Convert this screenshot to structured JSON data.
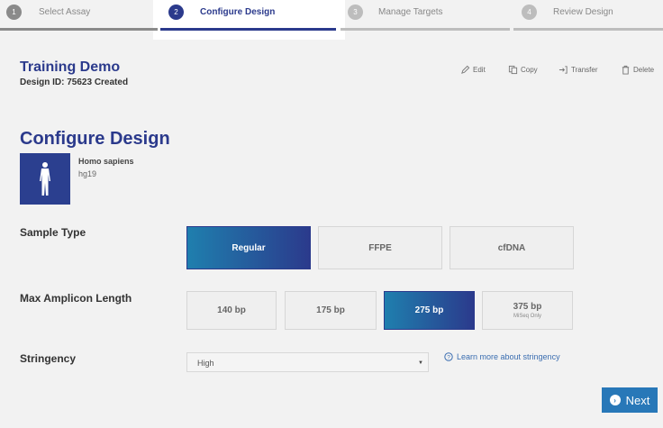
{
  "stepper": {
    "steps": [
      {
        "number": "1",
        "label": "Select Assay",
        "state": "done"
      },
      {
        "number": "2",
        "label": "Configure Design",
        "state": "active"
      },
      {
        "number": "3",
        "label": "Manage Targets",
        "state": "upcoming"
      },
      {
        "number": "4",
        "label": "Review Design",
        "state": "upcoming"
      }
    ]
  },
  "header": {
    "title": "Training Demo",
    "subtitle": "Design ID: 75623 Created",
    "actions": [
      {
        "label": "Edit",
        "icon": "pencil-icon"
      },
      {
        "label": "Copy",
        "icon": "copy-icon"
      },
      {
        "label": "Transfer",
        "icon": "transfer-icon"
      },
      {
        "label": "Delete",
        "icon": "trash-icon"
      }
    ]
  },
  "main": {
    "heading": "Configure Design",
    "species": {
      "name": "Homo sapiens",
      "build": "hg19",
      "icon": "human-figure-icon"
    },
    "sample_type": {
      "label": "Sample Type",
      "options": [
        "Regular",
        "FFPE",
        "cfDNA"
      ],
      "selected": "Regular"
    },
    "amplicon": {
      "label": "Max Amplicon Length",
      "options": [
        {
          "label": "140 bp",
          "note": ""
        },
        {
          "label": "175 bp",
          "note": ""
        },
        {
          "label": "275 bp",
          "note": ""
        },
        {
          "label": "375 bp",
          "note": "MiSeq Only"
        }
      ],
      "selected": "275 bp"
    },
    "stringency": {
      "label": "Stringency",
      "value": "High",
      "help_link": "Learn more about stringency"
    },
    "next_label": "Next"
  },
  "colors": {
    "brand": "#2b3a8c",
    "accent": "#2878b8",
    "background": "#f2f2f2"
  }
}
